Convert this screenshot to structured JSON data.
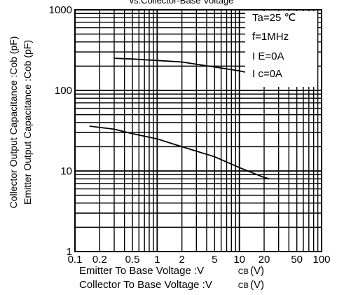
{
  "chart_data": {
    "type": "line",
    "title": "vs.Collector-Base Voltage",
    "xlabel_lines": [
      {
        "text": "Emitter To Base Voltage :V",
        "sub": "CB",
        "unit": "(V)"
      },
      {
        "text": "Collector To Base Voltage :V",
        "sub": "CB",
        "unit": "(V)"
      }
    ],
    "ylabel_lines": [
      "Collector Output Capacitance :Cob (pF)",
      "Emitter Output Capacitance :Cob (pF)"
    ],
    "x_scale": "log",
    "y_scale": "log",
    "xlim": [
      0.1,
      100
    ],
    "ylim": [
      1,
      1000
    ],
    "x_ticks": [
      0.1,
      0.2,
      0.5,
      1,
      2,
      5,
      10,
      20,
      50,
      100
    ],
    "x_tick_labels": [
      "0.1",
      "0.2",
      "0.5",
      "1",
      "2",
      "5",
      "10",
      "20",
      "50",
      "100"
    ],
    "y_ticks": [
      1,
      10,
      100,
      1000
    ],
    "y_tick_labels": [
      "1",
      "10",
      "100",
      "1000"
    ],
    "grid": true,
    "conditions": [
      "Ta=25 ℃",
      "f=1MHz",
      "I E=0A",
      "I c=0A"
    ],
    "legend_position": "top-right",
    "series": [
      {
        "x": [
          0.3,
          0.5,
          1,
          2,
          5,
          10,
          20,
          30
        ],
        "y": [
          250,
          245,
          235,
          225,
          195,
          175,
          150,
          135
        ]
      },
      {
        "x": [
          0.15,
          0.3,
          0.5,
          1,
          2,
          5,
          10,
          20,
          23
        ],
        "y": [
          36,
          33,
          29,
          25,
          20,
          15,
          11,
          8.3,
          8
        ]
      }
    ]
  }
}
